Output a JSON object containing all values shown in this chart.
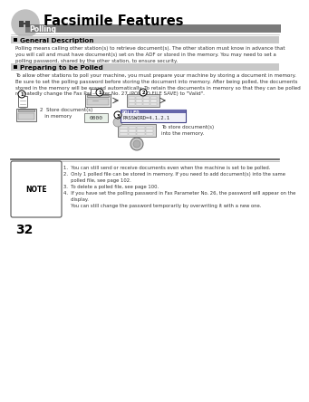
{
  "page_number": "32",
  "title": "Facsimile Features",
  "subtitle": "Polling",
  "section1_header": "General Description",
  "section1_text": "Polling means calling other station(s) to retrieve document(s). The other station must know in advance that\nyou will call and must have document(s) set on the ADF or stored in the memory. You may need to set a\npolling password, shared by the other station, to ensure security.",
  "section2_header": "Preparing to be Polled",
  "section2_text": "To allow other stations to poll your machine, you must prepare your machine by storing a document in memory.\nBe sure to set the polling password before storing the document into memory. After being polled, the documents\nstored in the memory will be erased automatically. To retain the documents in memory so that they can be polled\nrepeatedly change the Fax Parameter No. 27 (POLLED FILE SAVE) to \"Valid\".",
  "note_label": "NOTE",
  "note_text": "1.  You can still send or receive documents even when the machine is set to be polled.\n2.  Only 1 polled file can be stored in memory. If you need to add document(s) into the same\n     polled file, see page 102.\n3.  To delete a polled file, see page 100.\n4.  If you have set the polling password in Fax Parameter No. 26, the password will appear on the\n     display.\n     You can still change the password temporarily by overwriting it with a new one.",
  "store_doc_text": "2  Store document(s)\n   in memory",
  "to_store_text": "To store document(s)\ninto the memory.",
  "polled_display_line1": "POLLED",
  "polled_display_line2": "PASSWORD=4.1.2.1",
  "bg_color": "#ffffff",
  "gray_bar_color": "#7a7a7a",
  "section_bar_color": "#c8c8c8",
  "title_color": "#000000",
  "subtitle_color": "#ffffff",
  "body_color": "#333333",
  "icon_circle_color": "#c0c0c0"
}
